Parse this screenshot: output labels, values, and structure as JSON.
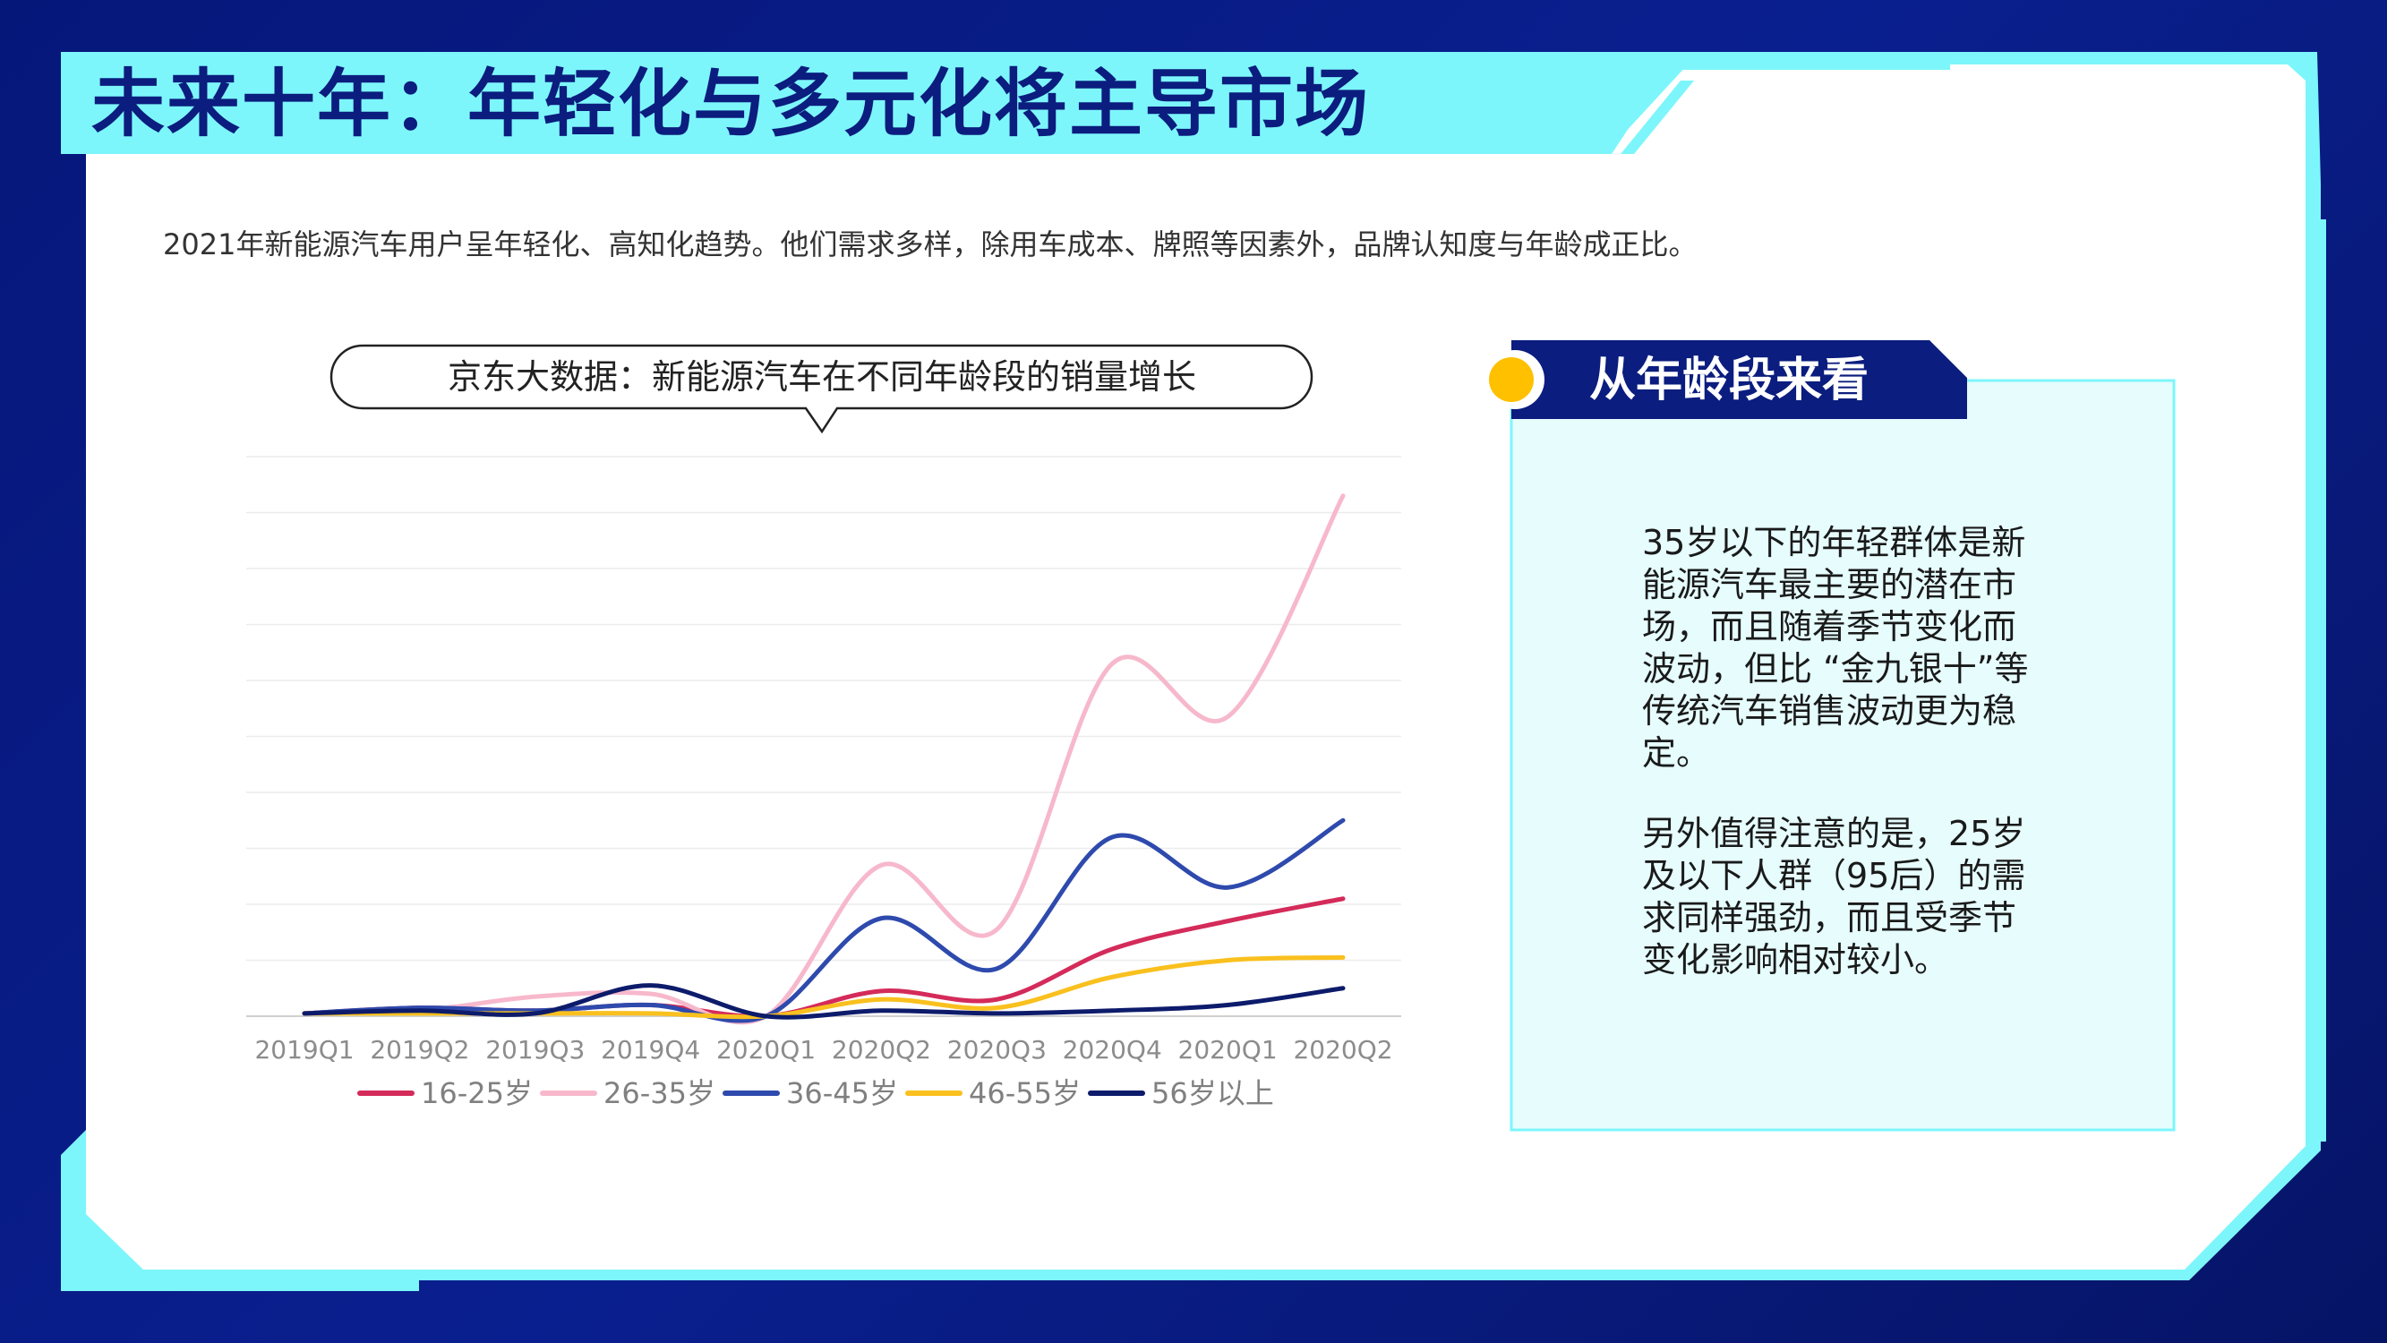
{
  "header": {
    "title": "未来十年：年轻化与多元化将主导市场",
    "subtitle": "2021年新能源汽车用户呈年轻化、高知化趋势。他们需求多样，除用车成本、牌照等因素外，品牌认知度与年龄成正比。"
  },
  "colors": {
    "frame": "#7df6fb",
    "navy": "#0b1d7e",
    "panel": "#e6fcfd",
    "accent": "#ffc000"
  },
  "side_panel": {
    "heading": "从年龄段来看",
    "paragraph_1": "35岁以下的年轻群体是新能源汽车最主要的潜在市场，而且随着季节变化而波动，但比 “金九银十”等传统汽车销售波动更为稳定。",
    "paragraph_2": "另外值得注意的是，25岁及以下人群（95后）的需求同样强劲，而且受季节变化影响相对较小。"
  },
  "chart_data": {
    "type": "line",
    "title": "京东大数据：新能源汽车在不同年龄段的销量增长",
    "categories": [
      "2019Q1",
      "2019Q2",
      "2019Q3",
      "2019Q4",
      "2020Q1",
      "2020Q2",
      "2020Q3",
      "2020Q4",
      "2020Q1",
      "2020Q2"
    ],
    "ylim": [
      0,
      100
    ],
    "grid": true,
    "legend": "bottom",
    "series": [
      {
        "name": "16-25岁",
        "color": "#d42b5a",
        "values": [
          0.5,
          1.5,
          1,
          2,
          0,
          4.5,
          3,
          12,
          17,
          21
        ]
      },
      {
        "name": "26-35岁",
        "color": "#f7b8cc",
        "values": [
          0.5,
          1,
          3.5,
          4,
          0,
          27,
          15.5,
          63,
          53.5,
          93
        ]
      },
      {
        "name": "36-45岁",
        "color": "#2e4aad",
        "values": [
          0.5,
          1.5,
          1,
          2,
          0,
          17.5,
          8.5,
          32,
          23,
          35
        ]
      },
      {
        "name": "46-55岁",
        "color": "#f9c01e",
        "values": [
          0.5,
          0.5,
          0.5,
          0.5,
          0,
          3,
          1.5,
          7,
          10,
          10.5
        ]
      },
      {
        "name": "56岁以上",
        "color": "#0d1b6b",
        "values": [
          0.5,
          1,
          0.5,
          5.5,
          0,
          1,
          0.5,
          1,
          2,
          5
        ]
      }
    ]
  }
}
